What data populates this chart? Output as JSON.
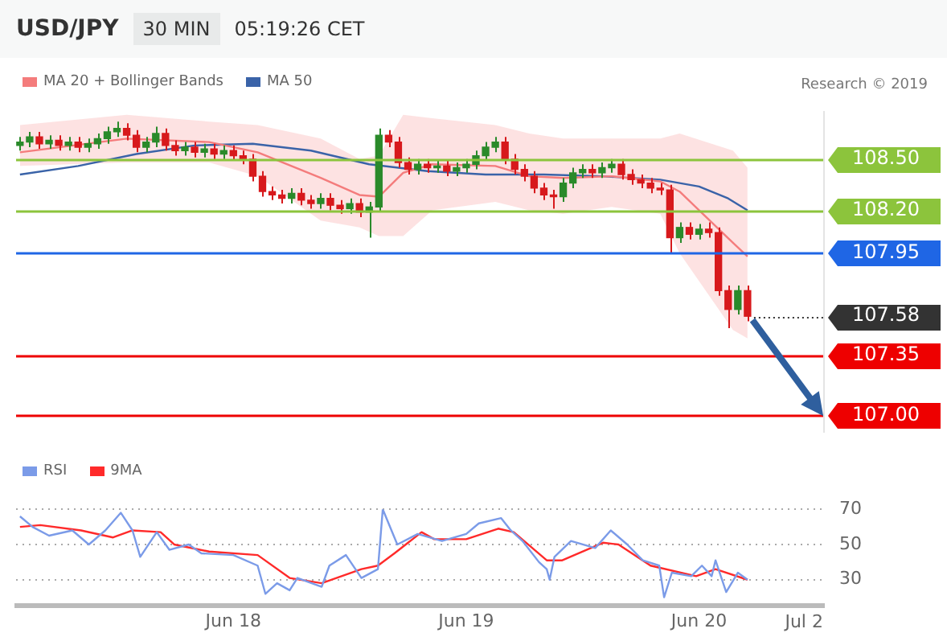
{
  "chart_data": [
    {
      "type": "candlestick",
      "title": "USD/JPY",
      "subtitle": "30 MIN",
      "annotations": [
        "05:19:26 CET",
        "Research © 2019"
      ],
      "x": [
        "2019-06-17T02:00",
        "2019-06-17T03:00",
        "2019-06-17T04:00",
        "2019-06-17T05:00",
        "2019-06-17T06:00",
        "2019-06-17T07:00",
        "2019-06-17T08:00",
        "2019-06-17T09:00",
        "2019-06-17T10:00",
        "2019-06-17T11:00",
        "2019-06-17T12:00",
        "2019-06-17T13:00",
        "2019-06-17T14:00",
        "2019-06-17T15:00",
        "2019-06-17T16:00",
        "2019-06-17T17:00",
        "2019-06-17T18:00",
        "2019-06-17T19:00",
        "2019-06-17T20:00",
        "2019-06-17T21:00",
        "2019-06-17T22:00",
        "2019-06-17T23:00",
        "2019-06-18T00:00",
        "2019-06-18T01:00",
        "2019-06-18T02:00",
        "2019-06-18T03:00",
        "2019-06-18T04:00",
        "2019-06-18T05:00",
        "2019-06-18T06:00",
        "2019-06-18T07:00",
        "2019-06-18T08:00",
        "2019-06-18T09:00",
        "2019-06-18T10:00",
        "2019-06-18T11:00",
        "2019-06-18T12:00",
        "2019-06-18T13:00",
        "2019-06-18T14:00",
        "2019-06-18T15:00",
        "2019-06-18T16:00",
        "2019-06-18T17:00",
        "2019-06-18T18:00",
        "2019-06-18T19:00",
        "2019-06-18T20:00",
        "2019-06-18T21:00",
        "2019-06-18T22:00",
        "2019-06-18T23:00",
        "2019-06-19T00:00",
        "2019-06-19T01:00",
        "2019-06-19T02:00",
        "2019-06-19T03:00",
        "2019-06-19T04:00",
        "2019-06-19T05:00",
        "2019-06-19T06:00",
        "2019-06-19T07:00",
        "2019-06-19T08:00",
        "2019-06-19T09:00",
        "2019-06-19T10:00",
        "2019-06-19T11:00",
        "2019-06-19T12:00",
        "2019-06-19T13:00",
        "2019-06-19T14:00",
        "2019-06-19T15:00",
        "2019-06-19T16:00",
        "2019-06-19T17:00",
        "2019-06-19T18:00",
        "2019-06-19T19:00",
        "2019-06-19T20:00",
        "2019-06-19T21:00",
        "2019-06-19T22:00",
        "2019-06-19T23:00",
        "2019-06-20T00:00",
        "2019-06-20T01:00",
        "2019-06-20T02:00",
        "2019-06-20T03:00",
        "2019-06-20T04:00",
        "2019-06-20T05:00"
      ],
      "ohlc": [
        [
          108.58,
          108.63,
          108.55,
          108.6
        ],
        [
          108.6,
          108.66,
          108.57,
          108.63
        ],
        [
          108.63,
          108.66,
          108.56,
          108.59
        ],
        [
          108.59,
          108.64,
          108.56,
          108.61
        ],
        [
          108.61,
          108.64,
          108.55,
          108.58
        ],
        [
          108.58,
          108.63,
          108.55,
          108.6
        ],
        [
          108.6,
          108.63,
          108.54,
          108.57
        ],
        [
          108.57,
          108.62,
          108.54,
          108.59
        ],
        [
          108.59,
          108.65,
          108.56,
          108.62
        ],
        [
          108.62,
          108.69,
          108.59,
          108.66
        ],
        [
          108.66,
          108.72,
          108.63,
          108.68
        ],
        [
          108.68,
          108.71,
          108.61,
          108.64
        ],
        [
          108.64,
          108.67,
          108.54,
          108.57
        ],
        [
          108.57,
          108.63,
          108.54,
          108.6
        ],
        [
          108.6,
          108.69,
          108.57,
          108.65
        ],
        [
          108.65,
          108.68,
          108.55,
          108.58
        ],
        [
          108.58,
          108.61,
          108.52,
          108.55
        ],
        [
          108.55,
          108.6,
          108.52,
          108.57
        ],
        [
          108.57,
          108.6,
          108.51,
          108.54
        ],
        [
          108.54,
          108.59,
          108.51,
          108.56
        ],
        [
          108.56,
          108.59,
          108.5,
          108.53
        ],
        [
          108.53,
          108.58,
          108.5,
          108.55
        ],
        [
          108.55,
          108.58,
          108.49,
          108.52
        ],
        [
          108.52,
          108.55,
          108.47,
          108.5
        ],
        [
          108.5,
          108.53,
          108.37,
          108.4
        ],
        [
          108.4,
          108.43,
          108.28,
          108.31
        ],
        [
          108.31,
          108.34,
          108.26,
          108.29
        ],
        [
          108.29,
          108.32,
          108.24,
          108.27
        ],
        [
          108.27,
          108.33,
          108.24,
          108.3
        ],
        [
          108.3,
          108.33,
          108.23,
          108.26
        ],
        [
          108.26,
          108.29,
          108.21,
          108.24
        ],
        [
          108.24,
          108.3,
          108.21,
          108.27
        ],
        [
          108.27,
          108.3,
          108.2,
          108.23
        ],
        [
          108.23,
          108.26,
          108.18,
          108.21
        ],
        [
          108.21,
          108.27,
          108.18,
          108.24
        ],
        [
          108.24,
          108.27,
          108.16,
          108.19
        ],
        [
          108.19,
          108.25,
          108.04,
          108.22
        ],
        [
          108.22,
          108.68,
          108.19,
          108.64
        ],
        [
          108.64,
          108.67,
          108.57,
          108.6
        ],
        [
          108.6,
          108.63,
          108.45,
          108.48
        ],
        [
          108.48,
          108.51,
          108.41,
          108.44
        ],
        [
          108.44,
          108.5,
          108.41,
          108.47
        ],
        [
          108.47,
          108.5,
          108.42,
          108.45
        ],
        [
          108.45,
          108.49,
          108.42,
          108.46
        ],
        [
          108.46,
          108.49,
          108.4,
          108.43
        ],
        [
          108.43,
          108.48,
          108.4,
          108.45
        ],
        [
          108.45,
          108.5,
          108.42,
          108.47
        ],
        [
          108.47,
          108.55,
          108.44,
          108.52
        ],
        [
          108.52,
          108.6,
          108.49,
          108.57
        ],
        [
          108.57,
          108.63,
          108.54,
          108.6
        ],
        [
          108.6,
          108.63,
          108.47,
          108.5
        ],
        [
          108.5,
          108.53,
          108.41,
          108.44
        ],
        [
          108.44,
          108.47,
          108.37,
          108.4
        ],
        [
          108.4,
          108.43,
          108.3,
          108.33
        ],
        [
          108.33,
          108.36,
          108.26,
          108.29
        ],
        [
          108.29,
          108.32,
          108.21,
          108.28
        ],
        [
          108.28,
          108.39,
          108.25,
          108.36
        ],
        [
          108.36,
          108.45,
          108.33,
          108.42
        ],
        [
          108.42,
          108.47,
          108.39,
          108.44
        ],
        [
          108.44,
          108.47,
          108.39,
          108.42
        ],
        [
          108.42,
          108.48,
          108.39,
          108.45
        ],
        [
          108.45,
          108.5,
          108.42,
          108.47
        ],
        [
          108.47,
          108.5,
          108.38,
          108.41
        ],
        [
          108.41,
          108.44,
          108.35,
          108.38
        ],
        [
          108.38,
          108.41,
          108.33,
          108.36
        ],
        [
          108.36,
          108.39,
          108.3,
          108.33
        ],
        [
          108.33,
          108.36,
          108.29,
          108.32
        ],
        [
          108.32,
          108.35,
          107.95,
          108.04
        ],
        [
          108.04,
          108.13,
          108.01,
          108.1
        ],
        [
          108.1,
          108.13,
          108.03,
          108.06
        ],
        [
          108.06,
          108.12,
          108.03,
          108.09
        ],
        [
          108.09,
          108.13,
          108.04,
          108.07
        ],
        [
          108.07,
          108.1,
          107.7,
          107.73
        ],
        [
          107.73,
          107.76,
          107.51,
          107.62
        ],
        [
          107.62,
          107.76,
          107.59,
          107.73
        ],
        [
          107.73,
          107.76,
          107.55,
          107.58
        ]
      ],
      "colors": [
        "#2a8a2a",
        "#2a8a2a",
        "#d7191c",
        "#2a8a2a",
        "#d7191c",
        "#2a8a2a",
        "#d7191c",
        "#2a8a2a",
        "#2a8a2a",
        "#2a8a2a",
        "#2a8a2a",
        "#d7191c",
        "#d7191c",
        "#2a8a2a",
        "#2a8a2a",
        "#d7191c",
        "#d7191c",
        "#2a8a2a",
        "#d7191c",
        "#2a8a2a",
        "#d7191c",
        "#2a8a2a",
        "#d7191c",
        "#d7191c",
        "#d7191c",
        "#d7191c",
        "#d7191c",
        "#d7191c",
        "#2a8a2a",
        "#d7191c",
        "#d7191c",
        "#2a8a2a",
        "#d7191c",
        "#d7191c",
        "#2a8a2a",
        "#d7191c",
        "#2a8a2a",
        "#2a8a2a",
        "#d7191c",
        "#d7191c",
        "#d7191c",
        "#2a8a2a",
        "#d7191c",
        "#2a8a2a",
        "#d7191c",
        "#2a8a2a",
        "#2a8a2a",
        "#2a8a2a",
        "#2a8a2a",
        "#2a8a2a",
        "#d7191c",
        "#d7191c",
        "#d7191c",
        "#d7191c",
        "#d7191c",
        "#d7191c",
        "#2a8a2a",
        "#2a8a2a",
        "#2a8a2a",
        "#d7191c",
        "#2a8a2a",
        "#2a8a2a",
        "#d7191c",
        "#d7191c",
        "#d7191c",
        "#d7191c",
        "#d7191c",
        "#d7191c",
        "#2a8a2a",
        "#d7191c",
        "#2a8a2a",
        "#d7191c",
        "#d7191c",
        "#d7191c",
        "#2a8a2a",
        "#d7191c"
      ],
      "series": [
        {
          "name": "MA 20 + Bollinger Bands",
          "type": "line",
          "color": "#f47c7c",
          "x": [
            "2019-06-17T02:00",
            "2019-06-17T13:00",
            "2019-06-17T21:30",
            "2019-06-18T02:30",
            "2019-06-18T09:00",
            "2019-06-18T13:00",
            "2019-06-18T15:00",
            "2019-06-18T17:30",
            "2019-06-18T20:30",
            "2019-06-19T03:00",
            "2019-06-19T06:30",
            "2019-06-19T10:00",
            "2019-06-19T15:00",
            "2019-06-19T20:00",
            "2019-06-19T22:00",
            "2019-06-20T03:30",
            "2019-06-20T05:00"
          ],
          "values": [
            108.54,
            108.62,
            108.6,
            108.54,
            108.39,
            108.29,
            108.28,
            108.42,
            108.47,
            108.46,
            108.4,
            108.39,
            108.4,
            108.37,
            108.31,
            108.01,
            107.93
          ],
          "lower": [
            108.46,
            108.48,
            108.48,
            108.4,
            108.14,
            108.1,
            108.05,
            108.05,
            108.2,
            108.25,
            108.2,
            108.18,
            108.22,
            108.18,
            107.95,
            107.5,
            107.45
          ],
          "upper": [
            108.7,
            108.76,
            108.72,
            108.7,
            108.62,
            108.5,
            108.52,
            108.76,
            108.74,
            108.7,
            108.65,
            108.62,
            108.62,
            108.62,
            108.65,
            108.55,
            108.45
          ]
        },
        {
          "name": "MA 50",
          "type": "line",
          "color": "#3a63a8",
          "x": [
            "2019-06-17T02:00",
            "2019-06-17T08:00",
            "2019-06-17T14:00",
            "2019-06-17T20:00",
            "2019-06-18T02:00",
            "2019-06-18T08:00",
            "2019-06-18T14:00",
            "2019-06-18T20:00",
            "2019-06-19T02:00",
            "2019-06-19T08:00",
            "2019-06-19T14:00",
            "2019-06-19T20:00",
            "2019-06-20T00:00",
            "2019-06-20T03:00",
            "2019-06-20T05:00"
          ],
          "values": [
            108.41,
            108.46,
            108.53,
            108.58,
            108.59,
            108.55,
            108.47,
            108.43,
            108.41,
            108.41,
            108.4,
            108.38,
            108.34,
            108.27,
            108.2
          ]
        }
      ],
      "ref_lines": [
        {
          "axis": "y",
          "value": 108.5,
          "color": "#8cc43c"
        },
        {
          "axis": "y",
          "value": 108.2,
          "color": "#8cc43c"
        },
        {
          "axis": "y",
          "value": 107.95,
          "color": "#1f66e5"
        },
        {
          "axis": "y",
          "value": 107.58,
          "color": "#333333",
          "line_style": "dotted"
        },
        {
          "axis": "y",
          "value": 107.35,
          "color": "#ee0000"
        },
        {
          "axis": "y",
          "value": 107.0,
          "color": "#ee0000"
        }
      ],
      "xlim": [
        "2019-06-17T01:36",
        "2019-06-20T12:48"
      ],
      "ylim": [
        106.9,
        108.78
      ],
      "yticks": [
        {
          "value": 107.0,
          "label": "107.00"
        },
        {
          "value": 107.35,
          "label": "107.35"
        },
        {
          "value": 107.58,
          "label": "107.58"
        },
        {
          "value": 107.95,
          "label": "107.95"
        },
        {
          "value": 108.2,
          "label": "108.20"
        },
        {
          "value": 108.5,
          "label": "108.50"
        }
      ],
      "tick_labels": "y",
      "legend": "top left"
    },
    {
      "type": "line",
      "series": [
        {
          "name": "RSI",
          "color": "#7b9be8",
          "x": [
            "2019-06-17T02:00",
            "2019-06-17T03:18",
            "2019-06-17T05:00",
            "2019-06-17T07:24",
            "2019-06-17T09:06",
            "2019-06-17T10:48",
            "2019-06-17T12:24",
            "2019-06-17T13:36",
            "2019-06-17T14:24",
            "2019-06-17T16:06",
            "2019-06-17T17:24",
            "2019-06-17T19:24",
            "2019-06-17T20:42",
            "2019-06-18T00:00",
            "2019-06-18T02:30",
            "2019-06-18T03:18",
            "2019-06-18T04:30",
            "2019-06-18T05:48",
            "2019-06-18T06:36",
            "2019-06-18T09:06",
            "2019-06-18T09:54",
            "2019-06-18T11:36",
            "2019-06-18T13:12",
            "2019-06-18T14:54",
            "2019-06-18T15:24",
            "2019-06-18T16:54",
            "2019-06-18T19:00",
            "2019-06-18T21:30",
            "2019-06-19T00:00",
            "2019-06-19T01:18",
            "2019-06-19T03:36",
            "2019-06-19T04:36",
            "2019-06-19T05:48",
            "2019-06-19T07:30",
            "2019-06-19T08:18",
            "2019-06-19T08:36",
            "2019-06-19T09:06",
            "2019-06-19T10:48",
            "2019-06-19T13:18",
            "2019-06-19T14:54",
            "2019-06-19T16:36",
            "2019-06-19T18:12",
            "2019-06-19T19:54",
            "2019-06-19T20:24",
            "2019-06-19T21:12",
            "2019-06-19T23:12",
            "2019-06-20T00:18",
            "2019-06-20T01:18",
            "2019-06-20T01:42",
            "2019-06-20T02:48",
            "2019-06-20T04:00",
            "2019-06-20T05:00"
          ],
          "values": [
            66,
            60,
            55,
            58,
            50,
            58,
            68,
            58,
            43,
            57,
            47,
            50,
            45,
            44,
            38,
            22,
            28,
            24,
            31,
            26,
            38,
            44,
            31,
            36,
            70,
            50,
            56,
            52,
            56,
            62,
            65,
            58,
            52,
            40,
            36,
            30,
            43,
            52,
            48,
            58,
            50,
            41,
            38,
            20,
            34,
            32,
            38,
            32,
            41,
            23,
            34,
            30
          ]
        },
        {
          "name": "9MA",
          "color": "#ff2a2a",
          "x": [
            "2019-06-17T02:00",
            "2019-06-17T04:06",
            "2019-06-17T08:18",
            "2019-06-17T11:36",
            "2019-06-17T13:36",
            "2019-06-17T16:30",
            "2019-06-17T17:54",
            "2019-06-17T21:30",
            "2019-06-18T02:30",
            "2019-06-18T05:48",
            "2019-06-18T09:06",
            "2019-06-18T13:12",
            "2019-06-18T14:54",
            "2019-06-18T16:36",
            "2019-06-18T19:24",
            "2019-06-18T20:42",
            "2019-06-19T00:00",
            "2019-06-19T03:18",
            "2019-06-19T04:54",
            "2019-06-19T08:18",
            "2019-06-19T09:54",
            "2019-06-19T14:06",
            "2019-06-19T15:42",
            "2019-06-19T19:00",
            "2019-06-19T23:42",
            "2019-06-20T01:42",
            "2019-06-20T05:00"
          ],
          "values": [
            60,
            61,
            58,
            54,
            58,
            57,
            50,
            46,
            44,
            31,
            28,
            36,
            38,
            45,
            57,
            53,
            53,
            59,
            57,
            41,
            41,
            51,
            50,
            38,
            32,
            36,
            30
          ]
        }
      ],
      "xlim": [
        "2019-06-17T01:36",
        "2019-06-20T12:48"
      ],
      "xticks": [
        {
          "value": "2019-06-18",
          "label": "Jun 18"
        },
        {
          "value": "2019-06-19",
          "label": "Jun 19"
        },
        {
          "value": "2019-06-20",
          "label": "Jun 20"
        }
      ],
      "annotations": [
        "Jul 2"
      ],
      "ylim": [
        15,
        70
      ],
      "yticks": [
        30,
        50,
        70
      ],
      "grid": "y",
      "legend": "top left"
    }
  ]
}
